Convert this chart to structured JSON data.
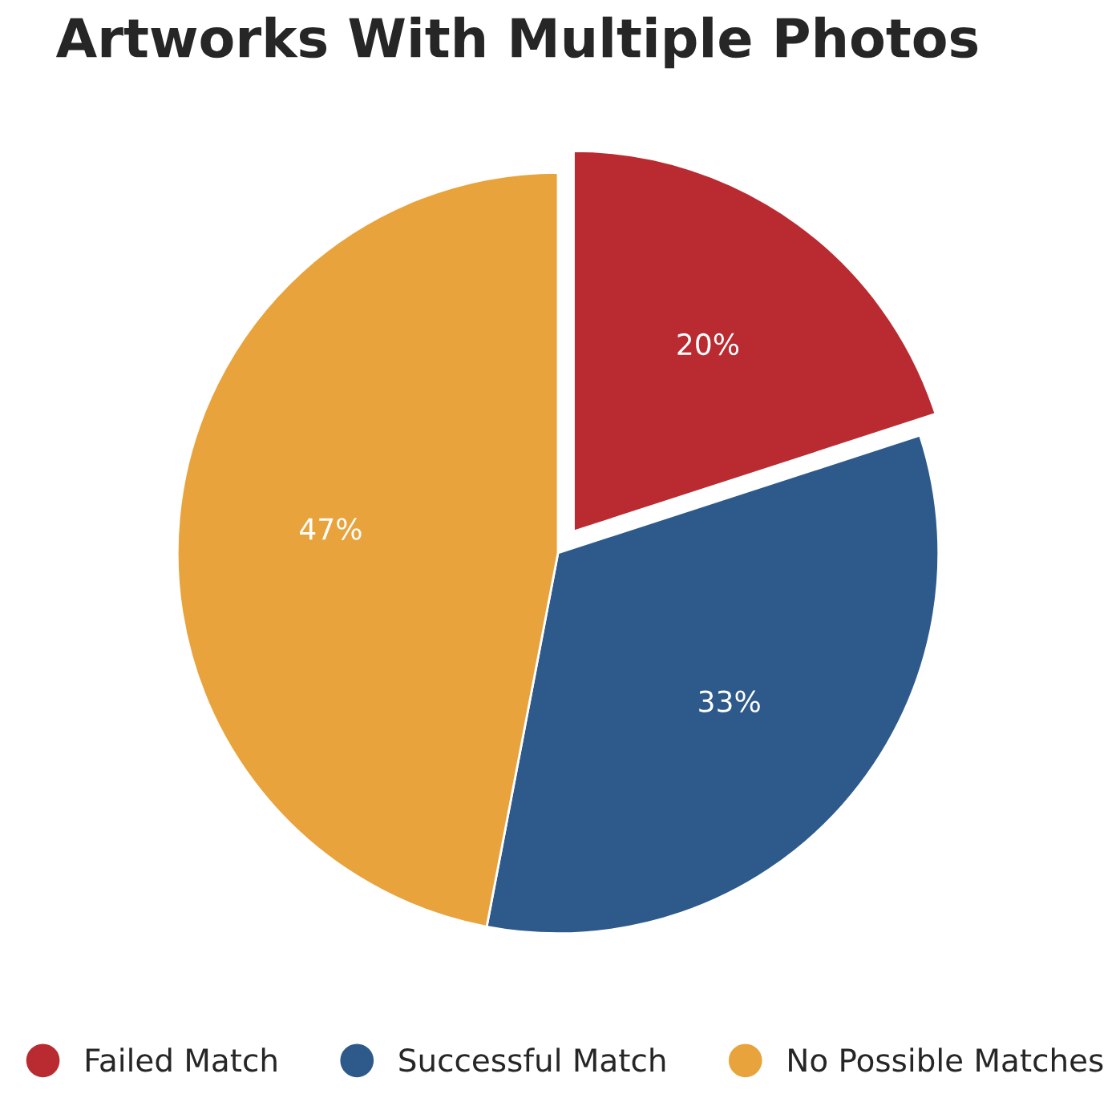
{
  "chart_data": {
    "type": "pie",
    "title": "Artworks With Multiple Photos",
    "categories": [
      "Failed Match",
      "Successful Match",
      "No Possible Matches"
    ],
    "values": [
      20,
      33,
      47
    ],
    "colors": [
      "#b92b31",
      "#2d5a8b",
      "#e8a33c"
    ],
    "value_labels": [
      "20%",
      "33%",
      "47%"
    ],
    "legend": "bottom"
  }
}
